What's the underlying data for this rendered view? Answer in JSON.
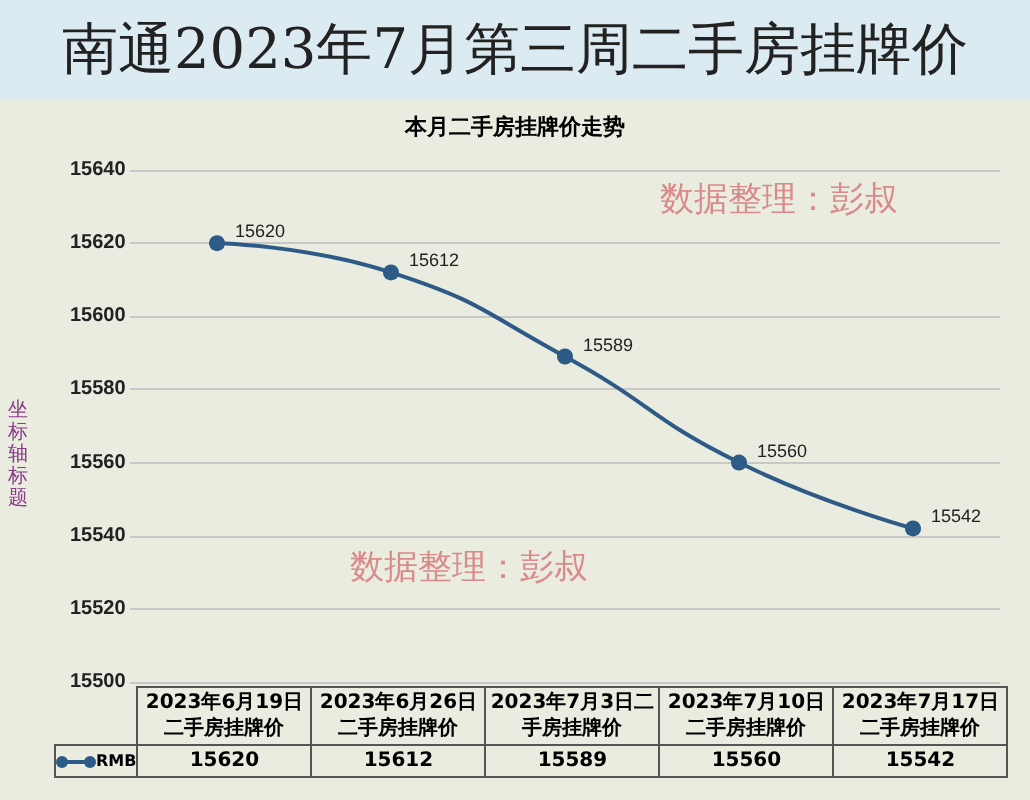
{
  "chart_data": {
    "type": "line",
    "title": "南通2023年7月第三周二手房挂牌价",
    "subtitle": "本月二手房挂牌价走势",
    "ylabel": "坐标轴标题",
    "categories": [
      "2023年6月19日二手房挂牌价",
      "2023年6月26日二手房挂牌价",
      "2023年7月3日二手房挂牌价",
      "2023年7月10日二手房挂牌价",
      "2023年7月17日二手房挂牌价"
    ],
    "series": [
      {
        "name": "RMB",
        "color": "#2e5a88",
        "values": [
          15620,
          15612,
          15589,
          15560,
          15542
        ],
        "value_labels": [
          "15620",
          "15612",
          "15589",
          "15560",
          "15542"
        ]
      }
    ],
    "ylim": [
      15500,
      15640
    ],
    "yticks": [
      15500,
      15520,
      15540,
      15560,
      15580,
      15600,
      15620,
      15640
    ],
    "grid": "y",
    "legend": "bottom",
    "marker": "circle",
    "line_style": "solid",
    "data_labels": true,
    "annotations": [
      "数据整理：彭叔",
      "数据整理：彭叔",
      {
        "text": "15620",
        "x": "2023年6月19日二手房挂牌价"
      },
      {
        "text": "15612",
        "x": "2023年6月26日二手房挂牌价"
      },
      {
        "text": "15589",
        "x": "2023年7月3日二手房挂牌价"
      },
      {
        "text": "15560",
        "x": "2023年7月10日二手房挂牌价"
      },
      {
        "text": "15542",
        "x": "2023年7月17日二手房挂牌价"
      }
    ]
  }
}
